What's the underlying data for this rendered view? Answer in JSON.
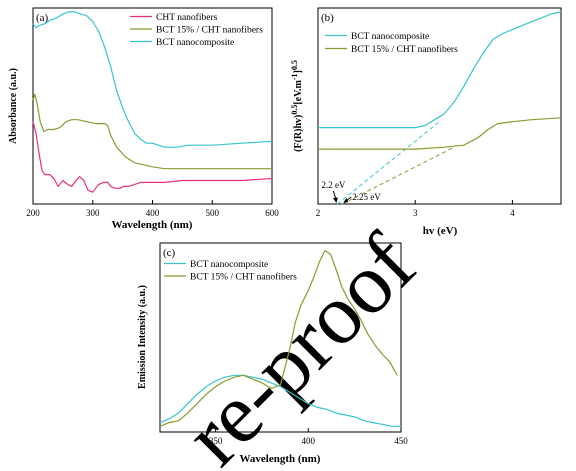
{
  "colors": {
    "pink": "#e8307e",
    "olive": "#8c9a2e",
    "cyan": "#38c4cf",
    "watermark": "#dcdcdc"
  },
  "watermark": "re-proof",
  "chart_data": [
    {
      "panel": "(a)",
      "type": "line",
      "xlabel": "Wavelength (nm)",
      "ylabel": "Absorbance (a.u.)",
      "xlim": [
        200,
        600
      ],
      "ylim": [
        0,
        1
      ],
      "xticks": [
        "200",
        "300",
        "400",
        "500",
        "600"
      ],
      "x_ticks_values": [
        200,
        300,
        400,
        500,
        600
      ],
      "legend_position": "top-right",
      "series": [
        {
          "name": "CHT nanofibers",
          "color": "#e8307e",
          "x": [
            200,
            205,
            210,
            215,
            220,
            228,
            235,
            242,
            250,
            258,
            265,
            272,
            278,
            285,
            292,
            300,
            305,
            310,
            318,
            325,
            330,
            338,
            345,
            352,
            360,
            370,
            380,
            390,
            400,
            420,
            450,
            500,
            550,
            600
          ],
          "y": [
            0.42,
            0.36,
            0.26,
            0.17,
            0.15,
            0.15,
            0.13,
            0.09,
            0.12,
            0.1,
            0.09,
            0.12,
            0.14,
            0.12,
            0.07,
            0.06,
            0.08,
            0.1,
            0.11,
            0.11,
            0.09,
            0.08,
            0.08,
            0.09,
            0.09,
            0.1,
            0.11,
            0.11,
            0.11,
            0.11,
            0.12,
            0.12,
            0.12,
            0.13
          ]
        },
        {
          "name": "BCT 15% / CHT nanofibers",
          "color": "#8c9a2e",
          "x": [
            200,
            203,
            207,
            212,
            218,
            225,
            235,
            245,
            255,
            265,
            275,
            290,
            305,
            320,
            325,
            330,
            340,
            355,
            370,
            385,
            400,
            420,
            450,
            500,
            550,
            600
          ],
          "y": [
            0.53,
            0.56,
            0.51,
            0.42,
            0.37,
            0.38,
            0.38,
            0.39,
            0.42,
            0.43,
            0.43,
            0.42,
            0.41,
            0.41,
            0.4,
            0.35,
            0.29,
            0.24,
            0.21,
            0.2,
            0.19,
            0.18,
            0.18,
            0.18,
            0.18,
            0.18
          ]
        },
        {
          "name": "BCT nanocomposite",
          "color": "#38c4cf",
          "x": [
            200,
            205,
            210,
            220,
            230,
            240,
            250,
            260,
            270,
            280,
            290,
            300,
            310,
            320,
            330,
            340,
            350,
            360,
            370,
            380,
            390,
            400,
            410,
            420,
            430,
            440,
            460,
            500,
            550,
            600
          ],
          "y": [
            0.92,
            0.9,
            0.91,
            0.92,
            0.94,
            0.95,
            0.97,
            0.98,
            0.98,
            0.97,
            0.96,
            0.93,
            0.88,
            0.8,
            0.7,
            0.58,
            0.49,
            0.42,
            0.36,
            0.33,
            0.31,
            0.31,
            0.3,
            0.29,
            0.29,
            0.29,
            0.3,
            0.3,
            0.31,
            0.32
          ]
        }
      ]
    },
    {
      "panel": "(b)",
      "type": "line",
      "xlabel": "hv (eV)",
      "ylabel": "(F(R)hv)^0.5 [eV.m^-1]^0.5",
      "xlim": [
        2,
        4.5
      ],
      "ylim": [
        0,
        1
      ],
      "xticks": [
        "2",
        "3",
        "4"
      ],
      "x_ticks_values": [
        2,
        3,
        4
      ],
      "legend_position": "top-left",
      "annotations": [
        {
          "text": "2.2 eV",
          "x": 2.2
        },
        {
          "text": "2.25 eV",
          "x": 2.25
        }
      ],
      "series": [
        {
          "name": "BCT nanocomposite",
          "color": "#38c4cf",
          "x": [
            2.0,
            2.5,
            3.0,
            3.1,
            3.2,
            3.3,
            3.4,
            3.5,
            3.6,
            3.7,
            3.8,
            3.9,
            4.0,
            4.1,
            4.2,
            4.3,
            4.4,
            4.5
          ],
          "y": [
            0.39,
            0.39,
            0.39,
            0.4,
            0.43,
            0.46,
            0.52,
            0.6,
            0.69,
            0.77,
            0.84,
            0.87,
            0.89,
            0.91,
            0.93,
            0.95,
            0.97,
            0.98
          ]
        },
        {
          "name": "BCT 15% / CHT nanofibers",
          "color": "#8c9a2e",
          "x": [
            2.0,
            2.5,
            3.0,
            3.3,
            3.5,
            3.65,
            3.75,
            3.85,
            4.0,
            4.2,
            4.5
          ],
          "y": [
            0.28,
            0.28,
            0.28,
            0.29,
            0.3,
            0.34,
            0.38,
            0.41,
            0.42,
            0.43,
            0.44
          ]
        }
      ],
      "tangents": [
        {
          "color": "#38c4cf",
          "x": [
            2.2,
            3.25
          ],
          "y": [
            0.0,
            0.42
          ]
        },
        {
          "color": "#8c9a2e",
          "x": [
            2.25,
            3.4
          ],
          "y": [
            0.0,
            0.29
          ]
        }
      ]
    },
    {
      "panel": "(c)",
      "type": "line",
      "xlabel": "Wavelength (nm)",
      "ylabel": "Emission Intensity (a.u.)",
      "xlim": [
        320,
        450
      ],
      "ylim": [
        0,
        1
      ],
      "xticks": [
        "350",
        "400",
        "450"
      ],
      "x_ticks_values": [
        350,
        400,
        450
      ],
      "legend_position": "top-left",
      "series": [
        {
          "name": "BCT nanocomposite",
          "color": "#38c4cf",
          "x": [
            320,
            325,
            330,
            335,
            340,
            345,
            350,
            355,
            360,
            365,
            370,
            375,
            380,
            385,
            390,
            395,
            400,
            405,
            410,
            415,
            420,
            425,
            430,
            435,
            440,
            445,
            450
          ],
          "y": [
            0.05,
            0.07,
            0.1,
            0.15,
            0.2,
            0.24,
            0.27,
            0.29,
            0.3,
            0.3,
            0.29,
            0.28,
            0.26,
            0.24,
            0.21,
            0.18,
            0.15,
            0.13,
            0.12,
            0.1,
            0.09,
            0.08,
            0.06,
            0.05,
            0.04,
            0.03,
            0.03
          ]
        },
        {
          "name": "BCT 15% / CHT nanofibers",
          "color": "#8c9a2e",
          "x": [
            320,
            325,
            330,
            335,
            340,
            345,
            350,
            355,
            360,
            365,
            370,
            375,
            380,
            385,
            390,
            393,
            396,
            400,
            403,
            406,
            409,
            412,
            415,
            418,
            421,
            425,
            428,
            432,
            436,
            440,
            444,
            448
          ],
          "y": [
            0.03,
            0.05,
            0.06,
            0.1,
            0.15,
            0.2,
            0.24,
            0.27,
            0.29,
            0.3,
            0.28,
            0.26,
            0.23,
            0.25,
            0.44,
            0.58,
            0.67,
            0.75,
            0.82,
            0.9,
            0.96,
            0.94,
            0.86,
            0.77,
            0.71,
            0.65,
            0.6,
            0.52,
            0.46,
            0.41,
            0.37,
            0.3
          ]
        }
      ]
    }
  ]
}
